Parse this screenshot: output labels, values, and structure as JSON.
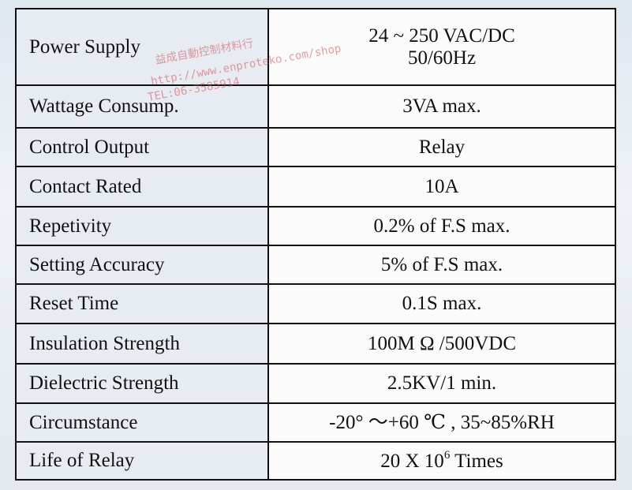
{
  "specs": [
    {
      "label": "Power Supply",
      "value": "24 ~ 250 VAC/DC",
      "value2": "50/60Hz"
    },
    {
      "label": "Wattage Consump.",
      "value": "3VA max."
    },
    {
      "label": "Control Output",
      "value": "Relay"
    },
    {
      "label": "Contact Rated",
      "value": "10A"
    },
    {
      "label": "Repetivity",
      "value": "0.2% of F.S max."
    },
    {
      "label": "Setting Accuracy",
      "value": "5% of F.S max."
    },
    {
      "label": "Reset Time",
      "value": "0.1S max."
    },
    {
      "label": "Insulation Strength",
      "value": "100M Ω /500VDC"
    },
    {
      "label": "Dielectric Strength",
      "value": "2.5KV/1 min."
    },
    {
      "label": "Circumstance",
      "value": "-20° ～+60 ℃ , 35~85%RH"
    },
    {
      "label": "Life of Relay",
      "value": "20 X 10",
      "value_sup": "6",
      "value_suffix": " Times"
    }
  ],
  "watermark": {
    "line1": "益成自動控制材料行",
    "line2": "http://www.enproteko.com/shop",
    "line3": "TEL:06-3585914"
  }
}
